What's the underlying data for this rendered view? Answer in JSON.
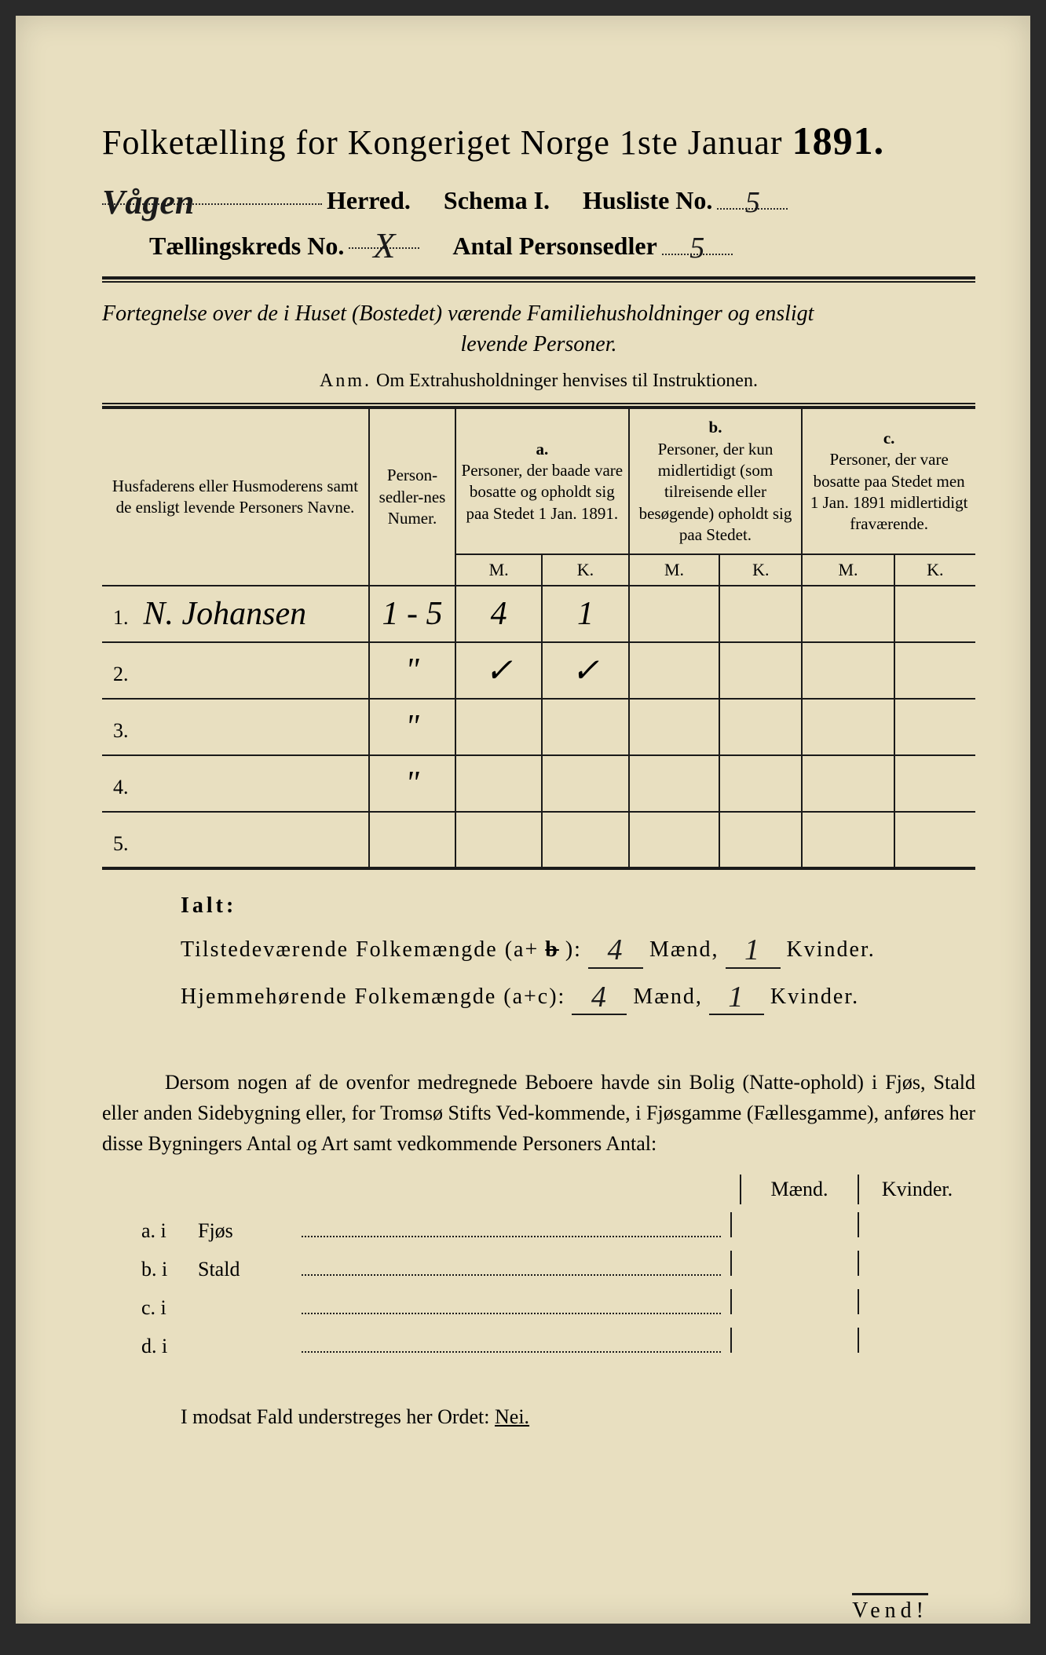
{
  "colors": {
    "paper": "#e8dfc0",
    "ink": "#1a1a1a",
    "background": "#2a2a2a"
  },
  "title": {
    "prefix": "Folketælling for Kongeriget Norge 1ste Januar",
    "year": "1891."
  },
  "header": {
    "herred_value": "Vågen",
    "herred_label": "Herred.",
    "schema_label": "Schema I.",
    "husliste_label": "Husliste No.",
    "husliste_value": "5",
    "kreds_label": "Tællingskreds No.",
    "kreds_value": "X",
    "antal_label": "Antal Personsedler",
    "antal_value": "5"
  },
  "subtitle": {
    "line1": "Fortegnelse over de i Huset (Bostedet) værende Familiehusholdninger og ensligt",
    "line2": "levende Personer."
  },
  "anm": {
    "prefix": "Anm.",
    "text": "Om Extrahusholdninger henvises til Instruktionen."
  },
  "table": {
    "col_names": "Husfaderens eller Husmoderens samt de ensligt levende Personers Navne.",
    "col_numer": "Person-sedler-nes Numer.",
    "col_a_letter": "a.",
    "col_a": "Personer, der baade vare bosatte og opholdt sig paa Stedet 1 Jan. 1891.",
    "col_b_letter": "b.",
    "col_b": "Personer, der kun midlertidigt (som tilreisende eller besøgende) opholdt sig paa Stedet.",
    "col_c_letter": "c.",
    "col_c": "Personer, der vare bosatte paa Stedet men 1 Jan. 1891 midlertidigt fraværende.",
    "m": "M.",
    "k": "K.",
    "rows": [
      {
        "num": "1.",
        "name": "N. Johansen",
        "numer": "1 - 5",
        "a_m": "4",
        "a_k": "1",
        "b_m": "",
        "b_k": "",
        "c_m": "",
        "c_k": ""
      },
      {
        "num": "2.",
        "name": "",
        "numer": "\"",
        "a_m": "✓",
        "a_k": "✓",
        "b_m": "",
        "b_k": "",
        "c_m": "",
        "c_k": ""
      },
      {
        "num": "3.",
        "name": "",
        "numer": "\"",
        "a_m": "",
        "a_k": "",
        "b_m": "",
        "b_k": "",
        "c_m": "",
        "c_k": ""
      },
      {
        "num": "4.",
        "name": "",
        "numer": "\"",
        "a_m": "",
        "a_k": "",
        "b_m": "",
        "b_k": "",
        "c_m": "",
        "c_k": ""
      },
      {
        "num": "5.",
        "name": "",
        "numer": "",
        "a_m": "",
        "a_k": "",
        "b_m": "",
        "b_k": "",
        "c_m": "",
        "c_k": ""
      }
    ]
  },
  "ialt": {
    "label": "Ialt:",
    "line1_label": "Tilstedeværende Folkemængde (a+",
    "line1_b": "b",
    "line1_close": "):",
    "line2_label": "Hjemmehørende Folkemængde (a+c):",
    "maend": "Mænd,",
    "kvinder": "Kvinder.",
    "v1_m": "4",
    "v1_k": "1",
    "v2_m": "4",
    "v2_k": "1"
  },
  "paragraph": "Dersom nogen af de ovenfor medregnede Beboere havde sin Bolig (Natte-ophold) i Fjøs, Stald eller anden Sidebygning eller, for Tromsø Stifts Ved-kommende, i Fjøsgamme (Fællesgamme), anføres her disse Bygningers Antal og Art samt vedkommende Personers Antal:",
  "outbuilding": {
    "maend": "Mænd.",
    "kvinder": "Kvinder.",
    "rows": [
      {
        "label": "a. i",
        "name": "Fjøs"
      },
      {
        "label": "b. i",
        "name": "Stald"
      },
      {
        "label": "c. i",
        "name": ""
      },
      {
        "label": "d. i",
        "name": ""
      }
    ]
  },
  "final": {
    "text": "I modsat Fald understreges her Ordet:",
    "nei": "Nei."
  },
  "vend": "Vend!"
}
